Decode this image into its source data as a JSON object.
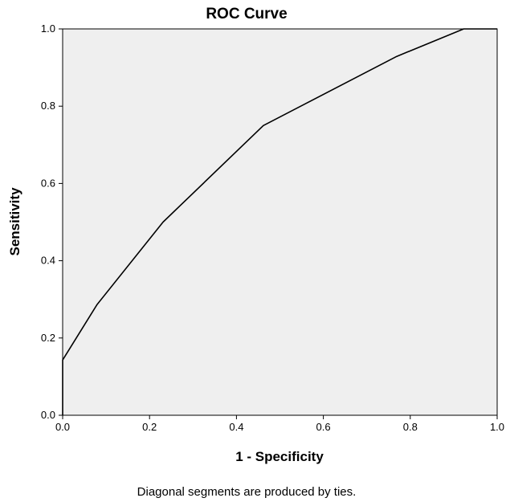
{
  "chart_data": {
    "type": "line",
    "title": "ROC Curve",
    "xlabel": "1 - Specificity",
    "ylabel": "Sensitivity",
    "xlim": [
      0,
      1
    ],
    "ylim": [
      0,
      1
    ],
    "x_ticks": [
      "0.0",
      "0.2",
      "0.4",
      "0.6",
      "0.8",
      "1.0"
    ],
    "y_ticks": [
      "0.0",
      "0.2",
      "0.4",
      "0.6",
      "0.8",
      "1.0"
    ],
    "grid": false,
    "series": [
      {
        "x": [
          0.0,
          0.0,
          0.079,
          0.231,
          0.462,
          0.769,
          0.923,
          1.0
        ],
        "y": [
          0.0,
          0.143,
          0.286,
          0.5,
          0.75,
          0.929,
          1.0,
          1.0
        ]
      }
    ],
    "footnote": "Diagonal segments are produced by ties."
  },
  "colors": {
    "plot_background": "#efefef",
    "line": "#000000"
  }
}
